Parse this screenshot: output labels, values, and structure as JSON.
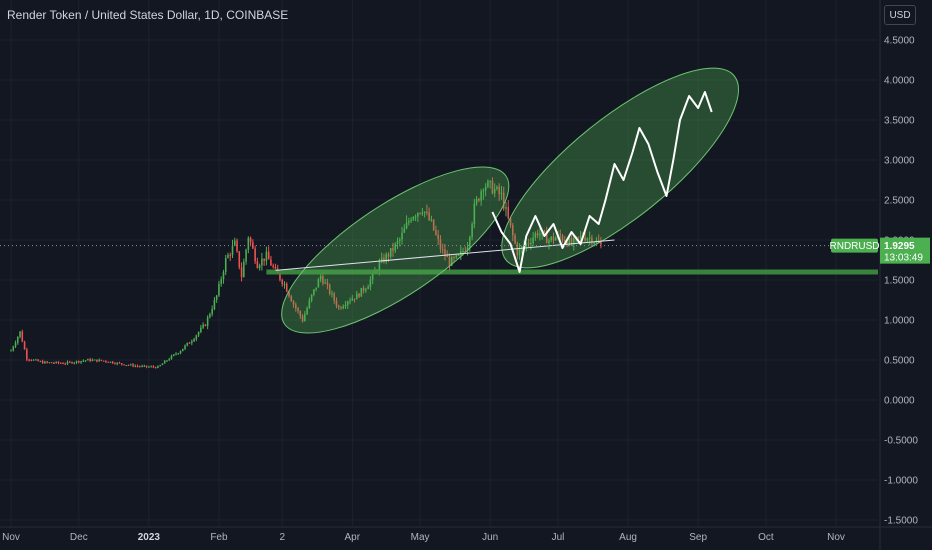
{
  "header": {
    "title": "Render Token / United States Dollar, 1D, COINBASE",
    "currency": "USD"
  },
  "price_tag": {
    "symbol": "RNDRUSD",
    "last_price": "1.9295",
    "countdown": "13:03:49"
  },
  "colors": {
    "background": "#131722",
    "up": "#4caf50",
    "down": "#ef5350",
    "ellipse_fill": "rgba(76,175,80,0.35)",
    "ellipse_stroke": "#6cc36f",
    "support": "#3f8f3f",
    "projection": "#ffffff"
  },
  "chart_data": {
    "type": "candlestick",
    "y_ticks": [
      "4.5000",
      "4.0000",
      "3.5000",
      "3.0000",
      "2.5000",
      "2.0000",
      "1.5000",
      "1.0000",
      "0.5000",
      "0.0000",
      "-0.5000",
      "-1.0000",
      "-1.5000"
    ],
    "y_tick_values": [
      4.5,
      4.0,
      3.5,
      3.0,
      2.5,
      2.0,
      1.5,
      1.0,
      0.5,
      0.0,
      -0.5,
      -1.0,
      -1.5
    ],
    "ylim": [
      -1.5,
      4.75
    ],
    "x_ticks": [
      {
        "label": "Nov",
        "date": "2022-11-01",
        "year": false
      },
      {
        "label": "Dec",
        "date": "2022-12-01",
        "year": false
      },
      {
        "label": "2023",
        "date": "2023-01-01",
        "year": true
      },
      {
        "label": "Feb",
        "date": "2023-02-01",
        "year": false
      },
      {
        "label": "2",
        "date": "2023-03-01",
        "year": false
      },
      {
        "label": "Apr",
        "date": "2023-04-01",
        "year": false
      },
      {
        "label": "May",
        "date": "2023-05-01",
        "year": false
      },
      {
        "label": "Jun",
        "date": "2023-06-01",
        "year": false
      },
      {
        "label": "Jul",
        "date": "2023-07-01",
        "year": false
      },
      {
        "label": "Aug",
        "date": "2023-08-01",
        "year": false
      },
      {
        "label": "Sep",
        "date": "2023-09-01",
        "year": false
      },
      {
        "label": "Oct",
        "date": "2023-10-01",
        "year": false
      },
      {
        "label": "Nov",
        "date": "2023-11-01",
        "year": false
      }
    ],
    "price_anchors": [
      [
        "2022-11-01",
        0.62
      ],
      [
        "2022-11-05",
        0.85
      ],
      [
        "2022-11-08",
        0.52
      ],
      [
        "2022-11-15",
        0.47
      ],
      [
        "2022-11-25",
        0.46
      ],
      [
        "2022-12-05",
        0.5
      ],
      [
        "2022-12-12",
        0.49
      ],
      [
        "2022-12-20",
        0.45
      ],
      [
        "2022-12-28",
        0.42
      ],
      [
        "2023-01-05",
        0.41
      ],
      [
        "2023-01-10",
        0.52
      ],
      [
        "2023-01-15",
        0.62
      ],
      [
        "2023-01-20",
        0.75
      ],
      [
        "2023-01-26",
        0.95
      ],
      [
        "2023-01-31",
        1.3
      ],
      [
        "2023-02-04",
        1.75
      ],
      [
        "2023-02-08",
        1.95
      ],
      [
        "2023-02-11",
        1.55
      ],
      [
        "2023-02-14",
        2.05
      ],
      [
        "2023-02-18",
        1.7
      ],
      [
        "2023-02-22",
        1.8
      ],
      [
        "2023-02-26",
        1.6
      ],
      [
        "2023-03-02",
        1.45
      ],
      [
        "2023-03-06",
        1.2
      ],
      [
        "2023-03-10",
        1.0
      ],
      [
        "2023-03-14",
        1.3
      ],
      [
        "2023-03-18",
        1.55
      ],
      [
        "2023-03-22",
        1.35
      ],
      [
        "2023-03-26",
        1.15
      ],
      [
        "2023-03-30",
        1.25
      ],
      [
        "2023-04-03",
        1.3
      ],
      [
        "2023-04-08",
        1.45
      ],
      [
        "2023-04-13",
        1.7
      ],
      [
        "2023-04-18",
        1.85
      ],
      [
        "2023-04-22",
        2.0
      ],
      [
        "2023-04-27",
        2.3
      ],
      [
        "2023-05-02",
        2.4
      ],
      [
        "2023-05-06",
        2.2
      ],
      [
        "2023-05-10",
        1.9
      ],
      [
        "2023-05-14",
        1.72
      ],
      [
        "2023-05-18",
        1.78
      ],
      [
        "2023-05-22",
        1.95
      ],
      [
        "2023-05-25",
        2.4
      ],
      [
        "2023-05-29",
        2.7
      ],
      [
        "2023-06-02",
        2.65
      ],
      [
        "2023-06-06",
        2.55
      ],
      [
        "2023-06-10",
        2.15
      ],
      [
        "2023-06-13",
        1.85
      ],
      [
        "2023-06-17",
        1.95
      ],
      [
        "2023-06-22",
        2.1
      ],
      [
        "2023-06-27",
        2.0
      ],
      [
        "2023-07-02",
        2.05
      ],
      [
        "2023-07-07",
        1.95
      ],
      [
        "2023-07-12",
        2.05
      ],
      [
        "2023-07-16",
        2.02
      ],
      [
        "2023-07-20",
        1.93
      ]
    ],
    "projection": [
      [
        "2023-06-02",
        2.35
      ],
      [
        "2023-06-06",
        2.1
      ],
      [
        "2023-06-10",
        1.95
      ],
      [
        "2023-06-14",
        1.6
      ],
      [
        "2023-06-17",
        2.05
      ],
      [
        "2023-06-21",
        2.3
      ],
      [
        "2023-06-25",
        2.05
      ],
      [
        "2023-06-29",
        2.2
      ],
      [
        "2023-07-03",
        1.9
      ],
      [
        "2023-07-07",
        2.1
      ],
      [
        "2023-07-11",
        1.95
      ],
      [
        "2023-07-15",
        2.3
      ],
      [
        "2023-07-19",
        2.2
      ],
      [
        "2023-07-22",
        2.5
      ],
      [
        "2023-07-26",
        2.95
      ],
      [
        "2023-07-30",
        2.75
      ],
      [
        "2023-08-03",
        3.1
      ],
      [
        "2023-08-06",
        3.4
      ],
      [
        "2023-08-10",
        3.2
      ],
      [
        "2023-08-14",
        2.85
      ],
      [
        "2023-08-18",
        2.55
      ],
      [
        "2023-08-21",
        3.0
      ],
      [
        "2023-08-24",
        3.5
      ],
      [
        "2023-08-28",
        3.8
      ],
      [
        "2023-09-01",
        3.65
      ],
      [
        "2023-09-04",
        3.85
      ],
      [
        "2023-09-07",
        3.6
      ]
    ],
    "support_level": 1.6,
    "trendline": {
      "start": [
        "2023-02-26",
        1.62
      ],
      "end": [
        "2023-07-26",
        2.0
      ]
    },
    "ellipses": [
      {
        "start": [
          "2023-03-02",
          0.95
        ],
        "end": [
          "2023-06-08",
          2.8
        ]
      },
      {
        "start": [
          "2023-06-08",
          1.75
        ],
        "end": [
          "2023-09-17",
          4.05
        ]
      }
    ]
  }
}
